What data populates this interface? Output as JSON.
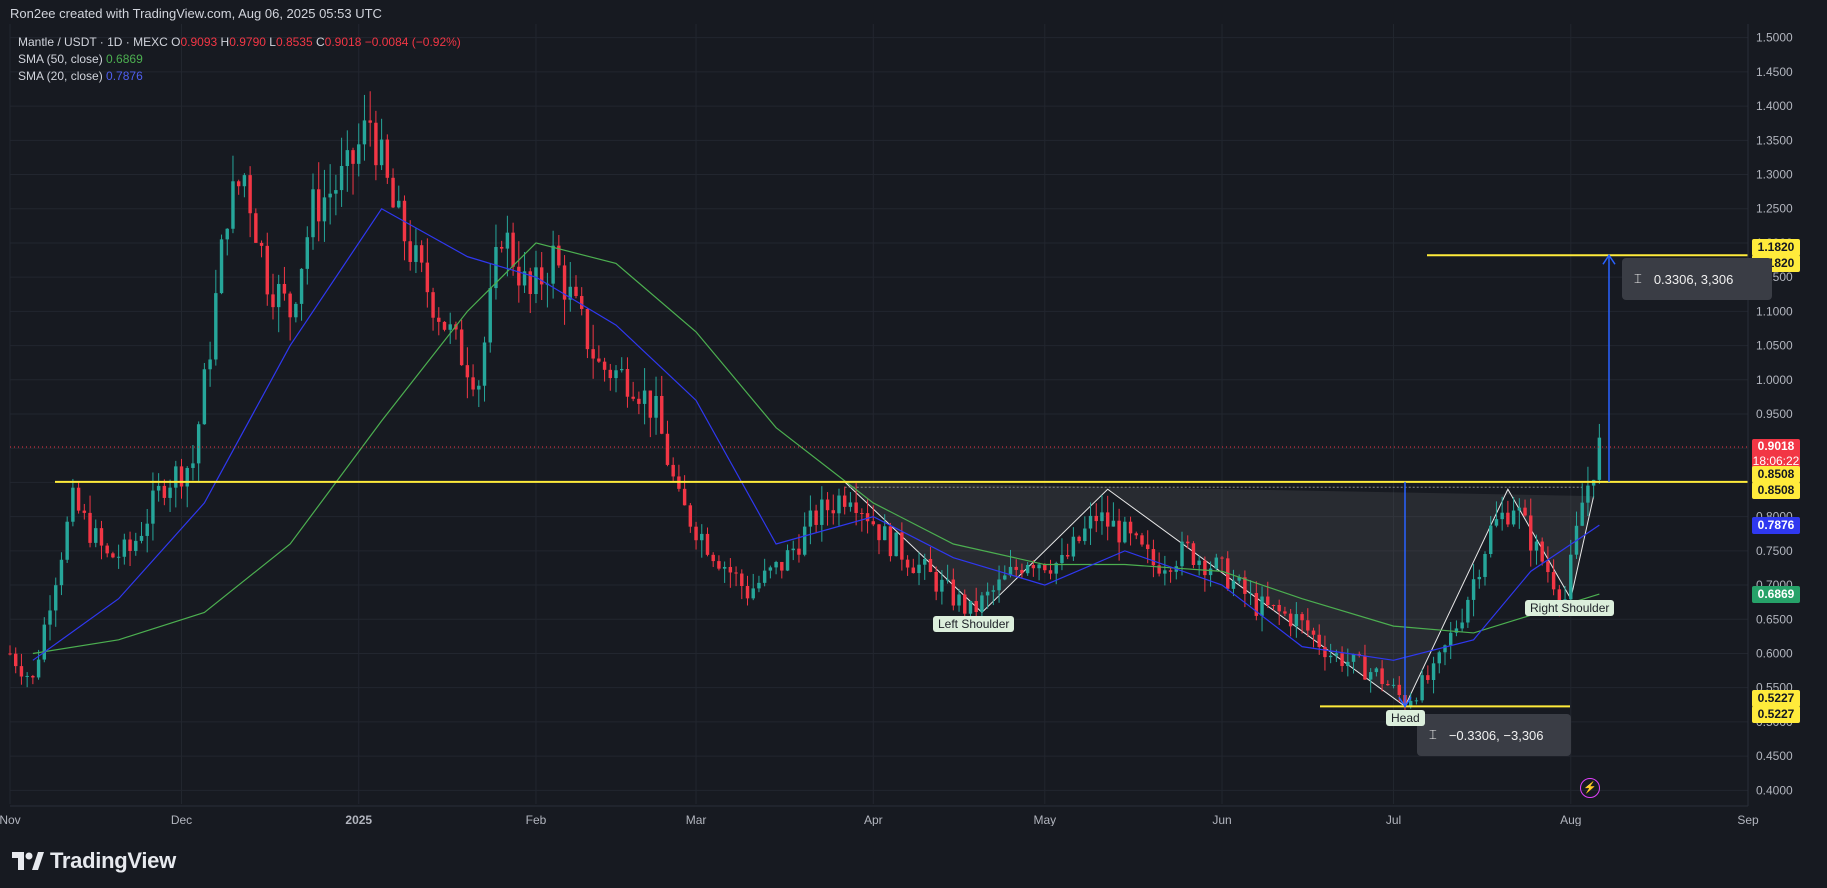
{
  "credit": "Ron2ee created with TradingView.com, Aug 06, 2025 05:53 UTC",
  "legend": {
    "symbol": "Mantle / USDT · 1D · MEXC",
    "o_label": "O",
    "o": "0.9093",
    "h_label": "H",
    "h": "0.9790",
    "l_label": "L",
    "l": "0.8535",
    "c_label": "C",
    "c": "0.9018",
    "change": "−0.0084 (−0.92%)",
    "sma50_label": "SMA (50, close)",
    "sma50": "0.6869",
    "sma20_label": "SMA (20, close)",
    "sma20": "0.7876"
  },
  "brand": "TradingView",
  "colors": {
    "up": "#26a69a",
    "down": "#f23645",
    "sma50": "#4caf50",
    "sma20": "#2f38f0",
    "yellow": "#ffeb3b",
    "measure": "#2962ff"
  },
  "price_tags": [
    {
      "value": "1.1820",
      "kind": "yellow"
    },
    {
      "value": "1.1820",
      "kind": "yellow"
    },
    {
      "value": "0.9018",
      "kind": "red",
      "countdown": "18:06:22"
    },
    {
      "value": "0.8508",
      "kind": "yellow"
    },
    {
      "value": "0.8508",
      "kind": "yellow"
    },
    {
      "value": "0.7876",
      "kind": "blue"
    },
    {
      "value": "0.6869",
      "kind": "green"
    },
    {
      "value": "0.5227",
      "kind": "yellow"
    },
    {
      "value": "0.5227",
      "kind": "yellow"
    }
  ],
  "annotations": {
    "left_shoulder": "Left Shoulder",
    "head": "Head",
    "right_shoulder": "Right Shoulder",
    "measure_up": "0.3306, 3,306",
    "measure_down": "−0.3306, −3,306"
  },
  "chart_data": {
    "type": "candlestick",
    "title": "Mantle / USDT · 1D · MEXC",
    "ylim": [
      0.38,
      1.52
    ],
    "y_ticks": [
      "1.5000",
      "1.4500",
      "1.4000",
      "1.3500",
      "1.3000",
      "1.2500",
      "1.2000",
      "1.1500",
      "1.1000",
      "1.0500",
      "1.0000",
      "0.9500",
      "0.9000",
      "0.8500",
      "0.8000",
      "0.7500",
      "0.7000",
      "0.6500",
      "0.6000",
      "0.5500",
      "0.5000",
      "0.4500",
      "0.4000"
    ],
    "x_ticks": [
      "Nov",
      "Dec",
      "2025",
      "Feb",
      "Mar",
      "Apr",
      "May",
      "Jun",
      "Jul",
      "Aug",
      "Sep"
    ],
    "x_range": [
      "2024-11-01",
      "2025-09-01"
    ],
    "last_close": 0.9018,
    "horizontal_levels": [
      {
        "name": "neckline",
        "value": 0.8508
      },
      {
        "name": "target",
        "value": 1.182
      },
      {
        "name": "head-low",
        "value": 0.5227
      }
    ],
    "pattern": [
      "Left Shoulder",
      "Head",
      "Right Shoulder"
    ],
    "price_keypoints": [
      [
        "2024-11-01",
        0.6
      ],
      [
        "2024-11-05",
        0.56
      ],
      [
        "2024-11-08",
        0.68
      ],
      [
        "2024-11-12",
        0.82
      ],
      [
        "2024-11-18",
        0.74
      ],
      [
        "2024-11-22",
        0.75
      ],
      [
        "2024-11-28",
        0.85
      ],
      [
        "2024-12-03",
        0.88
      ],
      [
        "2024-12-06",
        1.05
      ],
      [
        "2024-12-09",
        1.25
      ],
      [
        "2024-12-12",
        1.3
      ],
      [
        "2024-12-16",
        1.15
      ],
      [
        "2024-12-20",
        1.1
      ],
      [
        "2024-12-24",
        1.25
      ],
      [
        "2024-12-30",
        1.3
      ],
      [
        "2025-01-03",
        1.38
      ],
      [
        "2025-01-07",
        1.25
      ],
      [
        "2025-01-12",
        1.15
      ],
      [
        "2025-01-18",
        1.05
      ],
      [
        "2025-01-22",
        1.0
      ],
      [
        "2025-01-26",
        1.22
      ],
      [
        "2025-01-31",
        1.12
      ],
      [
        "2025-02-04",
        1.18
      ],
      [
        "2025-02-08",
        1.1
      ],
      [
        "2025-02-12",
        1.02
      ],
      [
        "2025-02-18",
        1.0
      ],
      [
        "2025-02-22",
        0.95
      ],
      [
        "2025-02-26",
        0.82
      ],
      [
        "2025-03-04",
        0.75
      ],
      [
        "2025-03-10",
        0.69
      ],
      [
        "2025-03-16",
        0.73
      ],
      [
        "2025-03-22",
        0.8
      ],
      [
        "2025-03-28",
        0.84
      ],
      [
        "2025-04-03",
        0.77
      ],
      [
        "2025-04-10",
        0.72
      ],
      [
        "2025-04-18",
        0.66
      ],
      [
        "2025-04-22",
        0.69
      ],
      [
        "2025-04-28",
        0.74
      ],
      [
        "2025-05-04",
        0.73
      ],
      [
        "2025-05-10",
        0.8
      ],
      [
        "2025-05-14",
        0.78
      ],
      [
        "2025-05-20",
        0.73
      ],
      [
        "2025-05-26",
        0.75
      ],
      [
        "2025-06-01",
        0.72
      ],
      [
        "2025-06-07",
        0.67
      ],
      [
        "2025-06-14",
        0.65
      ],
      [
        "2025-06-20",
        0.6
      ],
      [
        "2025-06-28",
        0.57
      ],
      [
        "2025-07-03",
        0.53
      ],
      [
        "2025-07-08",
        0.57
      ],
      [
        "2025-07-13",
        0.66
      ],
      [
        "2025-07-18",
        0.78
      ],
      [
        "2025-07-22",
        0.82
      ],
      [
        "2025-07-26",
        0.75
      ],
      [
        "2025-07-31",
        0.68
      ],
      [
        "2025-08-03",
        0.82
      ],
      [
        "2025-08-06",
        0.9018
      ]
    ],
    "series": [
      {
        "name": "SMA (50, close)",
        "last": 0.6869,
        "points": [
          [
            "2024-11-05",
            0.6
          ],
          [
            "2024-11-20",
            0.62
          ],
          [
            "2024-12-05",
            0.66
          ],
          [
            "2024-12-20",
            0.76
          ],
          [
            "2025-01-05",
            0.94
          ],
          [
            "2025-01-20",
            1.1
          ],
          [
            "2025-02-01",
            1.2
          ],
          [
            "2025-02-15",
            1.17
          ],
          [
            "2025-03-01",
            1.07
          ],
          [
            "2025-03-15",
            0.93
          ],
          [
            "2025-04-01",
            0.82
          ],
          [
            "2025-04-15",
            0.76
          ],
          [
            "2025-05-01",
            0.73
          ],
          [
            "2025-05-15",
            0.73
          ],
          [
            "2025-06-01",
            0.72
          ],
          [
            "2025-06-15",
            0.68
          ],
          [
            "2025-07-01",
            0.64
          ],
          [
            "2025-07-15",
            0.63
          ],
          [
            "2025-08-06",
            0.6869
          ]
        ]
      },
      {
        "name": "SMA (20, close)",
        "last": 0.7876,
        "points": [
          [
            "2024-11-05",
            0.59
          ],
          [
            "2024-11-20",
            0.68
          ],
          [
            "2024-12-05",
            0.82
          ],
          [
            "2024-12-20",
            1.05
          ],
          [
            "2025-01-05",
            1.25
          ],
          [
            "2025-01-20",
            1.18
          ],
          [
            "2025-02-01",
            1.15
          ],
          [
            "2025-02-15",
            1.08
          ],
          [
            "2025-03-01",
            0.97
          ],
          [
            "2025-03-15",
            0.76
          ],
          [
            "2025-04-01",
            0.8
          ],
          [
            "2025-04-15",
            0.74
          ],
          [
            "2025-05-01",
            0.7
          ],
          [
            "2025-05-15",
            0.75
          ],
          [
            "2025-06-01",
            0.7
          ],
          [
            "2025-06-15",
            0.61
          ],
          [
            "2025-07-01",
            0.59
          ],
          [
            "2025-07-15",
            0.62
          ],
          [
            "2025-07-25",
            0.72
          ],
          [
            "2025-08-06",
            0.7876
          ]
        ]
      }
    ]
  }
}
